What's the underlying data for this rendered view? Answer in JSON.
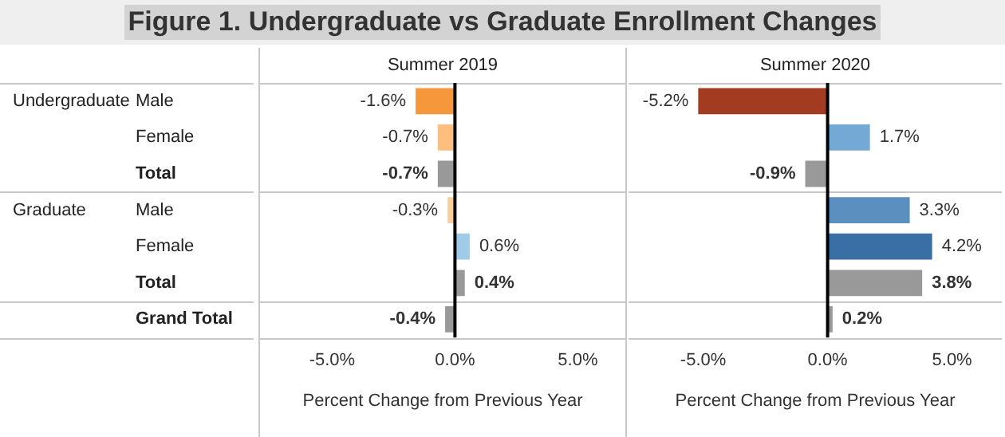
{
  "chart_data": [
    {
      "type": "bar",
      "orientation": "horizontal",
      "title": "Figure 1. Undergraduate vs Graduate Enrollment Changes",
      "subtitle": "Summer 2019",
      "xlabel": "Percent Change from Previous Year",
      "categories": [
        "Male",
        "Female",
        "Total",
        "Male",
        "Female",
        "Total",
        "Grand Total"
      ],
      "annotations": [
        "Undergraduate",
        "Graduate"
      ],
      "values": [
        -1.6,
        -0.7,
        -0.7,
        -0.3,
        0.6,
        0.4,
        -0.4
      ],
      "colors": [
        "#f5973a",
        "#ffbe7d",
        "#999999",
        "#f9cf9b",
        "#a0cbe8",
        "#999999",
        "#999999"
      ],
      "value_labels": [
        "-1.6%",
        "-0.7%",
        "-0.7%",
        "-0.3%",
        "0.6%",
        "0.4%",
        "-0.4%"
      ],
      "xlim": [
        -8,
        7
      ],
      "xticks": [
        {
          "value": -5,
          "label": "-5.0%"
        },
        {
          "value": 0,
          "label": "0.0%"
        },
        {
          "value": 5,
          "label": "5.0%"
        }
      ],
      "ref_lines": [
        {
          "axis": "x",
          "value": 0,
          "color": "#000000"
        }
      ]
    },
    {
      "type": "bar",
      "orientation": "horizontal",
      "subtitle": "Summer 2020",
      "xlabel": "Percent Change from Previous Year",
      "categories": [
        null,
        null,
        null,
        null,
        null,
        null,
        null
      ],
      "values": [
        -5.2,
        1.7,
        -0.9,
        3.3,
        4.2,
        3.8,
        0.2
      ],
      "colors": [
        "#a33b20",
        "#73a9d4",
        "#999999",
        "#5b8fc0",
        "#3a6fa5",
        "#999999",
        "#999999"
      ],
      "value_labels": [
        "-5.2%",
        "1.7%",
        "-0.9%",
        "3.3%",
        "4.2%",
        "3.8%",
        "0.2%"
      ],
      "xlim": [
        -8,
        7
      ],
      "xticks": [
        {
          "value": -5,
          "label": "-5.0%"
        },
        {
          "value": 0,
          "label": "0.0%"
        },
        {
          "value": 5,
          "label": "5.0%"
        }
      ],
      "ref_lines": [
        {
          "axis": "x",
          "value": 0,
          "color": "#000000"
        }
      ],
      "tick_labels": "x"
    }
  ]
}
